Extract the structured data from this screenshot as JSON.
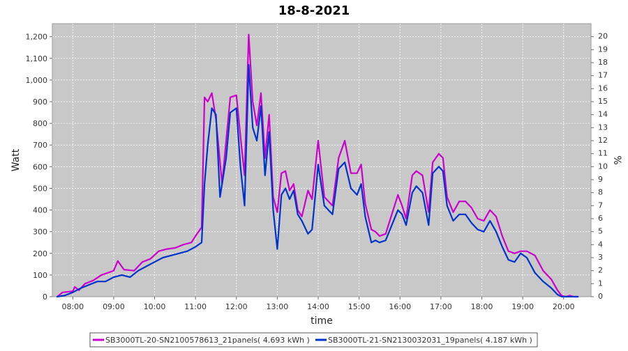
{
  "chart_data": {
    "type": "line",
    "title": "18-8-2021",
    "xlabel": "time",
    "ylabel": "Watt",
    "y2label": "%",
    "xlim": [
      7.5,
      20.67
    ],
    "ylim": [
      0,
      1260
    ],
    "y2lim": [
      0,
      21
    ],
    "x_ticks": [
      {
        "value": 8,
        "label": "08:00"
      },
      {
        "value": 9,
        "label": "09:00"
      },
      {
        "value": 10,
        "label": "10:00"
      },
      {
        "value": 11,
        "label": "11:00"
      },
      {
        "value": 12,
        "label": "12:00"
      },
      {
        "value": 13,
        "label": "13:00"
      },
      {
        "value": 14,
        "label": "14:00"
      },
      {
        "value": 15,
        "label": "15:00"
      },
      {
        "value": 16,
        "label": "16:00"
      },
      {
        "value": 17,
        "label": "17:00"
      },
      {
        "value": 18,
        "label": "18:00"
      },
      {
        "value": 19,
        "label": "19:00"
      },
      {
        "value": 20,
        "label": "20:00"
      }
    ],
    "y_ticks": [
      {
        "value": 0,
        "label": "0"
      },
      {
        "value": 100,
        "label": "100"
      },
      {
        "value": 200,
        "label": "200"
      },
      {
        "value": 300,
        "label": "300"
      },
      {
        "value": 400,
        "label": "400"
      },
      {
        "value": 500,
        "label": "500"
      },
      {
        "value": 600,
        "label": "600"
      },
      {
        "value": 700,
        "label": "700"
      },
      {
        "value": 800,
        "label": "800"
      },
      {
        "value": 900,
        "label": "900"
      },
      {
        "value": 1000,
        "label": "1,000"
      },
      {
        "value": 1100,
        "label": "1,100"
      },
      {
        "value": 1200,
        "label": "1,200"
      }
    ],
    "y2_ticks": [
      {
        "value": 0,
        "label": "0"
      },
      {
        "value": 1,
        "label": "1"
      },
      {
        "value": 2,
        "label": "2"
      },
      {
        "value": 3,
        "label": "3"
      },
      {
        "value": 4,
        "label": "4"
      },
      {
        "value": 5,
        "label": "5"
      },
      {
        "value": 6,
        "label": "6"
      },
      {
        "value": 7,
        "label": "7"
      },
      {
        "value": 8,
        "label": "8"
      },
      {
        "value": 9,
        "label": "9"
      },
      {
        "value": 10,
        "label": "10"
      },
      {
        "value": 11,
        "label": "11"
      },
      {
        "value": 12,
        "label": "12"
      },
      {
        "value": 13,
        "label": "13"
      },
      {
        "value": 14,
        "label": "14"
      },
      {
        "value": 15,
        "label": "15"
      },
      {
        "value": 16,
        "label": "16"
      },
      {
        "value": 17,
        "label": "17"
      },
      {
        "value": 18,
        "label": "18"
      },
      {
        "value": 19,
        "label": "19"
      },
      {
        "value": 20,
        "label": "20"
      }
    ],
    "grid": true,
    "legend_position": "bottom",
    "plot_background": "#c8c8c8",
    "series": [
      {
        "name": "SB3000TL-20-SN2100578613_21panels( 4.693 kWh )",
        "color": "#cc00cc",
        "x": [
          7.62,
          7.75,
          8.0,
          8.05,
          8.15,
          8.3,
          8.5,
          8.7,
          9.0,
          9.1,
          9.25,
          9.5,
          9.7,
          9.9,
          10.1,
          10.3,
          10.5,
          10.7,
          10.9,
          11.0,
          11.15,
          11.22,
          11.3,
          11.4,
          11.5,
          11.65,
          11.75,
          11.85,
          12.0,
          12.1,
          12.2,
          12.3,
          12.4,
          12.5,
          12.6,
          12.7,
          12.8,
          12.9,
          13.0,
          13.1,
          13.2,
          13.3,
          13.4,
          13.5,
          13.6,
          13.75,
          13.85,
          14.0,
          14.15,
          14.25,
          14.35,
          14.5,
          14.65,
          14.8,
          14.95,
          15.05,
          15.15,
          15.3,
          15.4,
          15.5,
          15.65,
          15.8,
          15.95,
          16.05,
          16.15,
          16.3,
          16.4,
          16.55,
          16.7,
          16.8,
          16.95,
          17.05,
          17.15,
          17.3,
          17.45,
          17.6,
          17.75,
          17.9,
          18.05,
          18.2,
          18.35,
          18.5,
          18.65,
          18.8,
          18.95,
          19.1,
          19.3,
          19.5,
          19.7,
          19.85,
          19.95,
          20.05,
          20.15,
          20.25,
          20.35
        ],
        "y": [
          0,
          20,
          25,
          45,
          30,
          60,
          75,
          100,
          120,
          165,
          125,
          120,
          160,
          175,
          210,
          220,
          225,
          240,
          250,
          280,
          320,
          920,
          900,
          940,
          820,
          520,
          720,
          920,
          930,
          740,
          560,
          1210,
          900,
          790,
          940,
          640,
          840,
          460,
          390,
          570,
          580,
          490,
          520,
          400,
          370,
          490,
          450,
          720,
          460,
          440,
          420,
          640,
          720,
          570,
          570,
          610,
          430,
          310,
          300,
          280,
          290,
          380,
          470,
          420,
          360,
          560,
          580,
          560,
          390,
          620,
          660,
          640,
          460,
          390,
          440,
          440,
          410,
          360,
          350,
          400,
          370,
          280,
          210,
          200,
          210,
          210,
          190,
          120,
          80,
          30,
          5,
          0,
          5,
          0,
          0
        ]
      },
      {
        "name": "SB3000TL-21-SN2130032031_19panels( 4.187 kWh )",
        "color": "#0033cc",
        "x": [
          7.62,
          7.8,
          8.0,
          8.2,
          8.4,
          8.6,
          8.8,
          9.0,
          9.2,
          9.4,
          9.6,
          9.8,
          10.0,
          10.2,
          10.4,
          10.6,
          10.8,
          11.0,
          11.15,
          11.22,
          11.3,
          11.4,
          11.5,
          11.6,
          11.75,
          11.85,
          12.0,
          12.1,
          12.2,
          12.3,
          12.4,
          12.5,
          12.6,
          12.7,
          12.8,
          12.9,
          13.0,
          13.1,
          13.2,
          13.3,
          13.4,
          13.5,
          13.6,
          13.75,
          13.85,
          14.0,
          14.15,
          14.25,
          14.35,
          14.5,
          14.65,
          14.8,
          14.95,
          15.05,
          15.15,
          15.3,
          15.4,
          15.5,
          15.65,
          15.8,
          15.95,
          16.05,
          16.15,
          16.3,
          16.4,
          16.55,
          16.7,
          16.8,
          16.95,
          17.05,
          17.15,
          17.3,
          17.45,
          17.6,
          17.75,
          17.9,
          18.05,
          18.2,
          18.35,
          18.5,
          18.65,
          18.8,
          18.95,
          19.1,
          19.3,
          19.5,
          19.7,
          19.85,
          19.95,
          20.05,
          20.15,
          20.25,
          20.35
        ],
        "y": [
          0,
          5,
          20,
          40,
          55,
          70,
          70,
          90,
          100,
          90,
          120,
          140,
          160,
          180,
          190,
          200,
          210,
          230,
          250,
          520,
          700,
          870,
          840,
          460,
          640,
          850,
          870,
          600,
          420,
          1070,
          780,
          720,
          880,
          560,
          760,
          400,
          220,
          470,
          500,
          450,
          490,
          380,
          350,
          290,
          310,
          610,
          420,
          400,
          380,
          590,
          620,
          500,
          470,
          520,
          370,
          250,
          260,
          250,
          260,
          330,
          400,
          380,
          330,
          480,
          510,
          480,
          330,
          570,
          600,
          580,
          420,
          350,
          380,
          380,
          340,
          310,
          300,
          350,
          300,
          230,
          170,
          160,
          200,
          180,
          110,
          70,
          40,
          10,
          0,
          0,
          0,
          0,
          0
        ]
      }
    ]
  }
}
